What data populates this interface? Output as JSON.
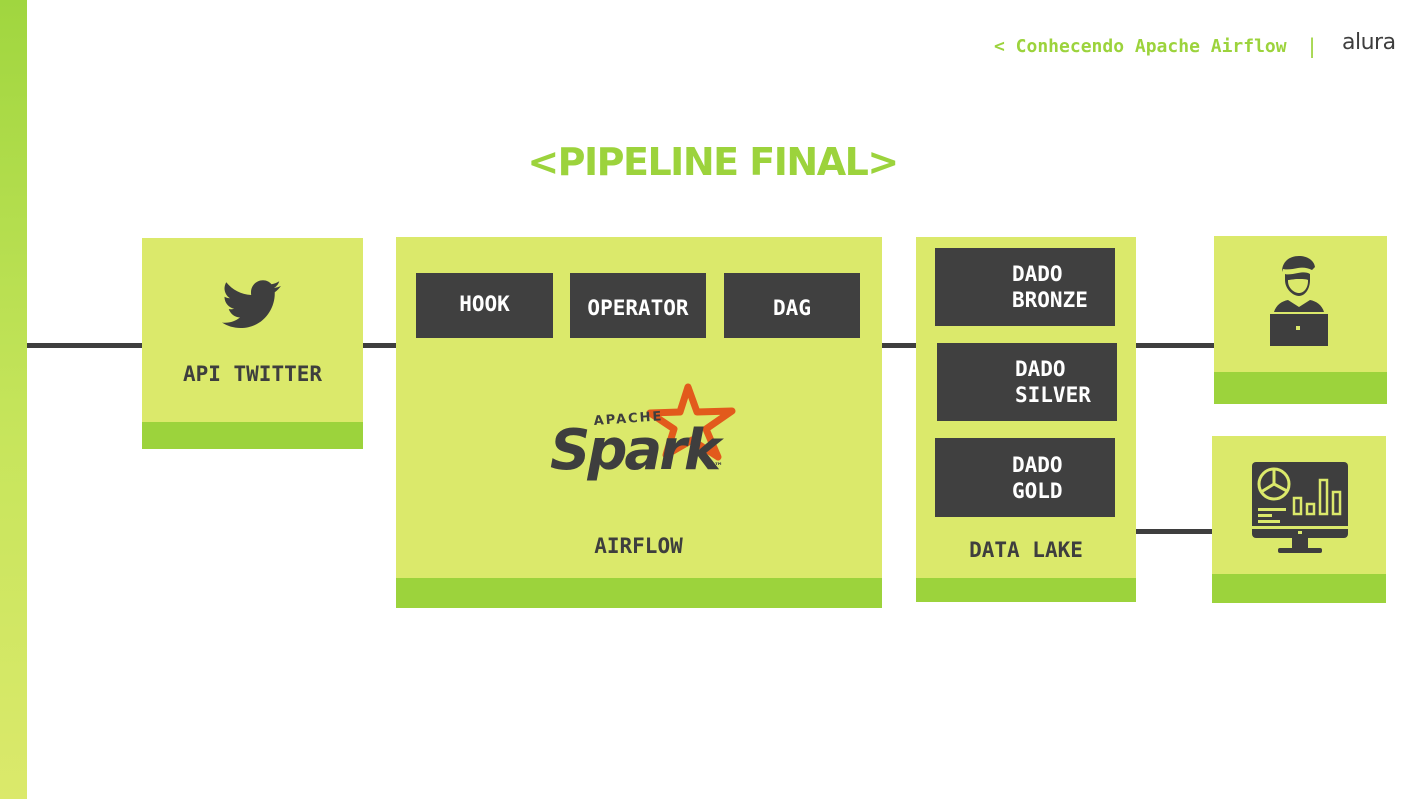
{
  "header": {
    "crumb": "< Conhecendo Apache Airflow",
    "separator": "|",
    "logo": "alura"
  },
  "title": "<PIPELINE FINAL>",
  "nodes": {
    "api": {
      "label": "API TWITTER",
      "icon": "twitter-bird-icon"
    },
    "airflow": {
      "label": "AIRFLOW",
      "components": [
        "HOOK",
        "OPERATOR",
        "DAG"
      ],
      "logo": {
        "small": "APACHE",
        "big": "Spark",
        "tm": "™"
      }
    },
    "datalake": {
      "label": "DATA LAKE",
      "tiers": [
        {
          "line1": "DADO",
          "line2": "BRONZE"
        },
        {
          "line1": "DADO",
          "line2": "SILVER"
        },
        {
          "line1": "DADO",
          "line2": "GOLD"
        }
      ]
    },
    "user": {
      "icon": "user-laptop-icon"
    },
    "dashboard": {
      "icon": "dashboard-monitor-icon"
    }
  },
  "colors": {
    "accent": "#9cd33c",
    "panel": "#dbe96b",
    "dark": "#404040",
    "spark_star": "#e25a1c"
  }
}
